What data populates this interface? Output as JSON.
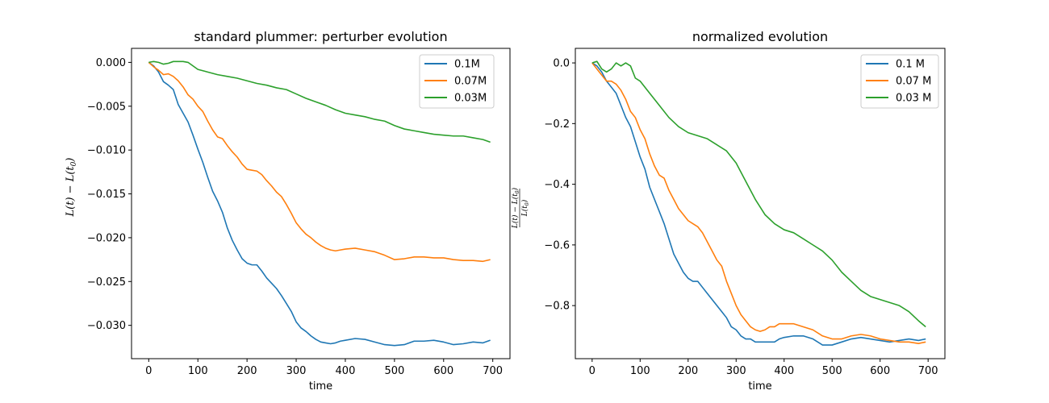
{
  "chart_data": [
    {
      "type": "line",
      "title": "standard plummer: perturber evolution",
      "xlabel": "time",
      "ylabel": "L(t) − L(t0)",
      "xlim": [
        -35,
        735
      ],
      "ylim": [
        -0.0338,
        0.0016
      ],
      "xticks": [
        0,
        100,
        200,
        300,
        400,
        500,
        600,
        700
      ],
      "yticks": [
        0.0,
        -0.005,
        -0.01,
        -0.015,
        -0.02,
        -0.025,
        -0.03
      ],
      "ytick_labels": [
        "0.000",
        "−0.005",
        "−0.010",
        "−0.015",
        "−0.020",
        "−0.025",
        "−0.030"
      ],
      "legend_position": "top-right",
      "series": [
        {
          "name": "0.1M",
          "color": "#1f77b4",
          "x": [
            0,
            10,
            20,
            30,
            40,
            50,
            60,
            70,
            80,
            90,
            100,
            110,
            120,
            130,
            140,
            150,
            160,
            170,
            180,
            190,
            200,
            210,
            220,
            230,
            240,
            250,
            260,
            270,
            280,
            290,
            300,
            310,
            320,
            330,
            340,
            350,
            360,
            370,
            380,
            390,
            400,
            420,
            440,
            460,
            480,
            500,
            520,
            540,
            560,
            580,
            600,
            620,
            640,
            660,
            680,
            695
          ],
          "y": [
            0,
            -0.0004,
            -0.0011,
            -0.0022,
            -0.0026,
            -0.0031,
            -0.0048,
            -0.0058,
            -0.0068,
            -0.0083,
            -0.0099,
            -0.0114,
            -0.0131,
            -0.0147,
            -0.0158,
            -0.0171,
            -0.0189,
            -0.0203,
            -0.0214,
            -0.0224,
            -0.0229,
            -0.0231,
            -0.0231,
            -0.0238,
            -0.0246,
            -0.0252,
            -0.0258,
            -0.0266,
            -0.0275,
            -0.0284,
            -0.0296,
            -0.0303,
            -0.0307,
            -0.0312,
            -0.0316,
            -0.0319,
            -0.032,
            -0.0321,
            -0.032,
            -0.0318,
            -0.0317,
            -0.0315,
            -0.0316,
            -0.0319,
            -0.0322,
            -0.0323,
            -0.0322,
            -0.0318,
            -0.0318,
            -0.0317,
            -0.0319,
            -0.0322,
            -0.0321,
            -0.0319,
            -0.032,
            -0.0317
          ]
        },
        {
          "name": "0.07M",
          "color": "#ff7f0e",
          "x": [
            0,
            10,
            20,
            30,
            40,
            50,
            60,
            70,
            80,
            90,
            100,
            110,
            120,
            130,
            140,
            150,
            160,
            170,
            180,
            190,
            200,
            210,
            220,
            230,
            240,
            250,
            260,
            270,
            280,
            290,
            300,
            310,
            320,
            330,
            340,
            350,
            360,
            370,
            380,
            390,
            400,
            420,
            440,
            460,
            480,
            500,
            520,
            540,
            560,
            580,
            600,
            620,
            640,
            660,
            680,
            695
          ],
          "y": [
            0,
            -0.0005,
            -0.0009,
            -0.0014,
            -0.0013,
            -0.0016,
            -0.0021,
            -0.0028,
            -0.0037,
            -0.0042,
            -0.005,
            -0.0056,
            -0.0067,
            -0.0077,
            -0.0085,
            -0.0087,
            -0.0095,
            -0.0102,
            -0.0108,
            -0.0116,
            -0.0122,
            -0.0123,
            -0.0124,
            -0.0128,
            -0.0135,
            -0.0141,
            -0.0148,
            -0.0153,
            -0.0162,
            -0.0172,
            -0.0183,
            -0.019,
            -0.0196,
            -0.02,
            -0.0205,
            -0.0209,
            -0.0212,
            -0.0214,
            -0.0215,
            -0.0214,
            -0.0213,
            -0.0212,
            -0.0214,
            -0.0216,
            -0.022,
            -0.0225,
            -0.0224,
            -0.0222,
            -0.0222,
            -0.0223,
            -0.0223,
            -0.0225,
            -0.0226,
            -0.0226,
            -0.0227,
            -0.0225
          ]
        },
        {
          "name": "0.03M",
          "color": "#2ca02c",
          "x": [
            0,
            10,
            20,
            30,
            40,
            50,
            60,
            70,
            80,
            90,
            100,
            120,
            140,
            160,
            180,
            200,
            220,
            240,
            260,
            280,
            300,
            320,
            340,
            360,
            380,
            400,
            420,
            440,
            460,
            480,
            500,
            520,
            540,
            560,
            580,
            600,
            620,
            640,
            660,
            680,
            695
          ],
          "y": [
            0,
            0.0001,
            0.0,
            -0.0002,
            -0.0001,
            0.0001,
            0.0001,
            0.0001,
            0.0,
            -0.0004,
            -0.0008,
            -0.0011,
            -0.0014,
            -0.0016,
            -0.0018,
            -0.0021,
            -0.0024,
            -0.0026,
            -0.0029,
            -0.0031,
            -0.0036,
            -0.0041,
            -0.0045,
            -0.0049,
            -0.0054,
            -0.0058,
            -0.006,
            -0.0062,
            -0.0065,
            -0.0067,
            -0.0072,
            -0.0076,
            -0.0078,
            -0.008,
            -0.0082,
            -0.0083,
            -0.0084,
            -0.0084,
            -0.0086,
            -0.0088,
            -0.0091
          ]
        }
      ]
    },
    {
      "type": "line",
      "title": "normalized evolution",
      "xlabel": "time",
      "ylabel": "(L(t) − L(t0)) / L(t0)",
      "xlim": [
        -35,
        735
      ],
      "ylim": [
        -0.975,
        0.048
      ],
      "xticks": [
        0,
        100,
        200,
        300,
        400,
        500,
        600,
        700
      ],
      "yticks": [
        0.0,
        -0.2,
        -0.4,
        -0.6,
        -0.8
      ],
      "ytick_labels": [
        "0.0",
        "−0.2",
        "−0.4",
        "−0.6",
        "−0.8"
      ],
      "legend_position": "top-right",
      "series": [
        {
          "name": "0.1 M",
          "color": "#1f77b4",
          "x": [
            0,
            10,
            20,
            30,
            40,
            50,
            60,
            70,
            80,
            90,
            100,
            110,
            120,
            130,
            140,
            150,
            160,
            170,
            180,
            190,
            200,
            210,
            220,
            230,
            240,
            250,
            260,
            270,
            280,
            290,
            300,
            310,
            320,
            330,
            340,
            350,
            360,
            370,
            380,
            390,
            400,
            420,
            440,
            460,
            480,
            500,
            520,
            540,
            560,
            580,
            600,
            620,
            640,
            660,
            680,
            695
          ],
          "y": [
            0,
            -0.01,
            -0.03,
            -0.06,
            -0.08,
            -0.1,
            -0.14,
            -0.18,
            -0.21,
            -0.26,
            -0.31,
            -0.35,
            -0.41,
            -0.45,
            -0.49,
            -0.53,
            -0.58,
            -0.63,
            -0.66,
            -0.69,
            -0.71,
            -0.72,
            -0.72,
            -0.74,
            -0.76,
            -0.78,
            -0.8,
            -0.82,
            -0.84,
            -0.87,
            -0.88,
            -0.9,
            -0.91,
            -0.91,
            -0.92,
            -0.92,
            -0.92,
            -0.92,
            -0.92,
            -0.91,
            -0.905,
            -0.9,
            -0.9,
            -0.91,
            -0.93,
            -0.93,
            -0.92,
            -0.91,
            -0.905,
            -0.91,
            -0.915,
            -0.92,
            -0.915,
            -0.91,
            -0.915,
            -0.91
          ]
        },
        {
          "name": "0.07 M",
          "color": "#ff7f0e",
          "x": [
            0,
            10,
            20,
            30,
            40,
            50,
            60,
            70,
            80,
            90,
            100,
            110,
            120,
            130,
            140,
            150,
            160,
            170,
            180,
            190,
            200,
            210,
            220,
            230,
            240,
            250,
            260,
            270,
            280,
            290,
            300,
            310,
            320,
            330,
            340,
            350,
            360,
            370,
            380,
            390,
            400,
            420,
            440,
            460,
            480,
            500,
            520,
            540,
            560,
            580,
            600,
            620,
            640,
            660,
            680,
            695
          ],
          "y": [
            0,
            -0.02,
            -0.04,
            -0.06,
            -0.06,
            -0.07,
            -0.09,
            -0.12,
            -0.16,
            -0.18,
            -0.22,
            -0.25,
            -0.3,
            -0.34,
            -0.37,
            -0.38,
            -0.42,
            -0.45,
            -0.48,
            -0.5,
            -0.52,
            -0.53,
            -0.54,
            -0.56,
            -0.59,
            -0.62,
            -0.65,
            -0.67,
            -0.72,
            -0.76,
            -0.8,
            -0.83,
            -0.85,
            -0.87,
            -0.88,
            -0.885,
            -0.88,
            -0.87,
            -0.87,
            -0.86,
            -0.86,
            -0.86,
            -0.87,
            -0.88,
            -0.9,
            -0.91,
            -0.91,
            -0.9,
            -0.895,
            -0.9,
            -0.91,
            -0.915,
            -0.92,
            -0.92,
            -0.925,
            -0.92
          ]
        },
        {
          "name": "0.03 M",
          "color": "#2ca02c",
          "x": [
            0,
            10,
            20,
            30,
            40,
            50,
            60,
            70,
            80,
            90,
            100,
            120,
            140,
            160,
            180,
            200,
            220,
            240,
            260,
            280,
            300,
            320,
            340,
            360,
            380,
            400,
            420,
            440,
            460,
            480,
            500,
            520,
            540,
            560,
            580,
            600,
            620,
            640,
            660,
            680,
            695
          ],
          "y": [
            0,
            0.005,
            -0.02,
            -0.03,
            -0.02,
            0.0,
            -0.01,
            0.0,
            -0.01,
            -0.05,
            -0.06,
            -0.1,
            -0.14,
            -0.18,
            -0.21,
            -0.23,
            -0.24,
            -0.25,
            -0.27,
            -0.29,
            -0.33,
            -0.39,
            -0.45,
            -0.5,
            -0.53,
            -0.55,
            -0.56,
            -0.58,
            -0.6,
            -0.62,
            -0.65,
            -0.69,
            -0.72,
            -0.75,
            -0.77,
            -0.78,
            -0.79,
            -0.8,
            -0.82,
            -0.85,
            -0.87
          ]
        }
      ]
    }
  ]
}
